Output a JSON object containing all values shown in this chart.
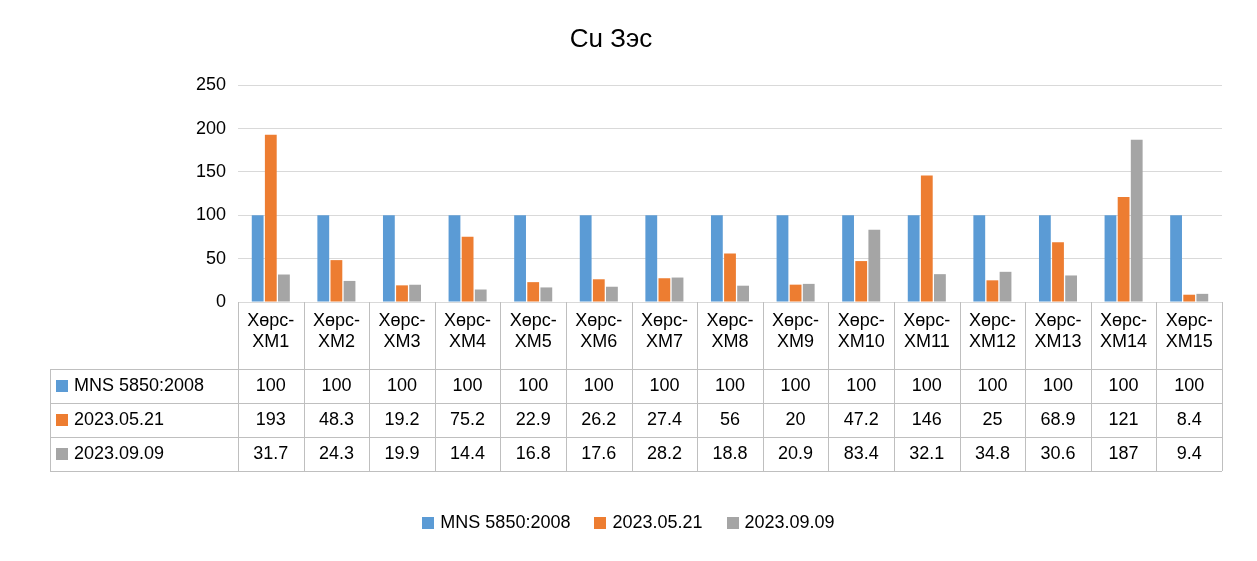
{
  "chart_data": {
    "type": "bar",
    "title": "Cu Зэс",
    "categories": [
      "Хөрс-ХМ1",
      "Хөрс-ХМ2",
      "Хөрс-ХМ3",
      "Хөрс-ХМ4",
      "Хөрс-ХМ5",
      "Хөрс-ХМ6",
      "Хөрс-ХМ7",
      "Хөрс-ХМ8",
      "Хөрс-ХМ9",
      "Хөрс-ХМ10",
      "Хөрс-ХМ11",
      "Хөрс-ХМ12",
      "Хөрс-ХМ13",
      "Хөрс-ХМ14",
      "Хөрс-ХМ15"
    ],
    "series": [
      {
        "name": "MNS 5850:2008",
        "color": "#5b9bd5",
        "values": [
          100,
          100,
          100,
          100,
          100,
          100,
          100,
          100,
          100,
          100,
          100,
          100,
          100,
          100,
          100
        ]
      },
      {
        "name": "2023.05.21",
        "color": "#ed7d31",
        "values": [
          193,
          48.3,
          19.2,
          75.2,
          22.9,
          26.2,
          27.4,
          56,
          20,
          47.2,
          146,
          25,
          68.9,
          121,
          8.4
        ]
      },
      {
        "name": "2023.09.09",
        "color": "#a5a5a5",
        "values": [
          31.7,
          24.3,
          19.9,
          14.4,
          16.8,
          17.6,
          28.2,
          18.8,
          20.9,
          83.4,
          32.1,
          34.8,
          30.6,
          187,
          9.4
        ]
      }
    ],
    "ylim": [
      0,
      250
    ],
    "yticks": [
      0,
      50,
      100,
      150,
      200,
      250
    ],
    "grid": "y",
    "legend": "bottom",
    "data_labels": true
  }
}
